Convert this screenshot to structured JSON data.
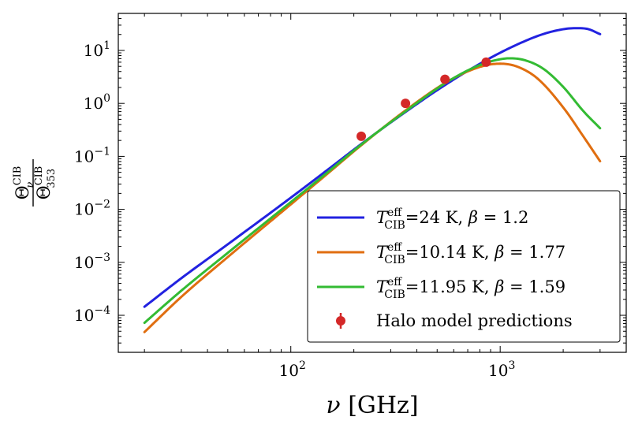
{
  "chart_data": {
    "type": "line",
    "x_scale": "log",
    "y_scale": "log",
    "xlim": [
      15,
      4000
    ],
    "ylim": [
      2e-05,
      50
    ],
    "x_major_ticks": [
      100,
      1000
    ],
    "x_major_tick_labels": [
      {
        "base": "10",
        "exp": "2"
      },
      {
        "base": "10",
        "exp": "3"
      }
    ],
    "y_major_ticks": [
      0.0001,
      0.001,
      0.01,
      0.1,
      1,
      10
    ],
    "y_major_tick_labels": [
      {
        "base": "10",
        "exp": "−4"
      },
      {
        "base": "10",
        "exp": "−3"
      },
      {
        "base": "10",
        "exp": "−2"
      },
      {
        "base": "10",
        "exp": "−1"
      },
      {
        "base": "10",
        "exp": "0"
      },
      {
        "base": "10",
        "exp": "1"
      }
    ],
    "xlabel": {
      "symbol": "ν",
      "unit": " [GHz]"
    },
    "ylabel": {
      "numerator": "Θ",
      "numerator_sub": "ν",
      "numerator_sup": "CIB",
      "denominator": "Θ",
      "denominator_sub": "353",
      "denominator_sup": "CIB"
    },
    "legend_position": "lower-right",
    "grid": false,
    "series": [
      {
        "name": "T_CIB^eff=24 K, β = 1.2",
        "label_parts": {
          "T": "T",
          "sub": "CIB",
          "sup": "eff",
          "rest": "=24 K, ",
          "beta": "β",
          "beta_rest": " = 1.2"
        },
        "color": "#2222e0",
        "x": [
          20,
          30,
          50,
          100,
          150,
          217,
          353,
          545,
          857,
          1200,
          1600,
          2000,
          2300,
          2600,
          3000
        ],
        "values": [
          0.000145,
          0.000501,
          0.00219,
          0.0166,
          0.0559,
          0.171,
          0.689,
          2.22,
          6.53,
          12.82,
          20.27,
          25.14,
          26.36,
          25.58,
          20.3
        ]
      },
      {
        "name": "T_CIB^eff=10.14 K, β = 1.77",
        "label_parts": {
          "T": "T",
          "sub": "CIB",
          "sup": "eff",
          "rest": "=10.14 K, ",
          "beta": "β",
          "beta_rest": " = 1.77"
        },
        "color": "#e06e10",
        "x": [
          20,
          30,
          50,
          100,
          150,
          217,
          353,
          545,
          700,
          857,
          1000,
          1200,
          1500,
          2000,
          2500,
          3000
        ],
        "values": [
          4.82e-05,
          0.000223,
          0.00126,
          0.0124,
          0.0474,
          0.162,
          0.736,
          2.42,
          4.02,
          5.25,
          5.62,
          4.98,
          3.0,
          0.84,
          0.236,
          0.081
        ]
      },
      {
        "name": "T_CIB^eff=11.95 K, β = 1.59",
        "label_parts": {
          "T": "T",
          "sub": "CIB",
          "sup": "eff",
          "rest": "=11.95 K, ",
          "beta": "β",
          "beta_rest": " = 1.59"
        },
        "color": "#33bb33",
        "x": [
          20,
          30,
          50,
          100,
          150,
          217,
          353,
          545,
          700,
          857,
          1000,
          1100,
          1300,
          1600,
          2000,
          2500,
          3000
        ],
        "values": [
          7.21e-05,
          0.000292,
          0.00151,
          0.0137,
          0.0501,
          0.167,
          0.709,
          2.39,
          4.19,
          5.84,
          6.81,
          7.1,
          6.6,
          4.56,
          2.05,
          0.71,
          0.34
        ]
      }
    ],
    "points": {
      "name": "Halo model predictions",
      "color": "#d42828",
      "x": [
        217,
        353,
        545,
        857
      ],
      "values": [
        0.24,
        1.0,
        2.85,
        6.0
      ]
    }
  }
}
